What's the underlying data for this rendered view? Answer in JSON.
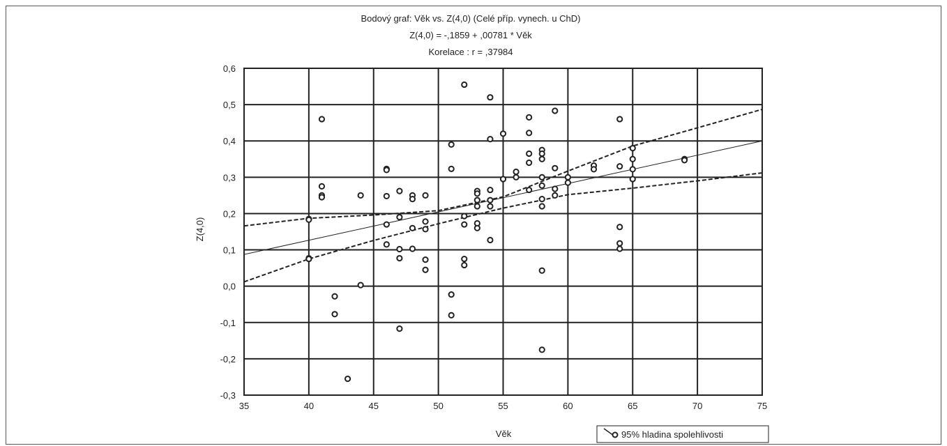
{
  "chart_data": {
    "type": "scatter",
    "title": "Bodový graf: Věk      vs. Z(4,0) (Celé příp. vynech. u ChD)",
    "subtitle": "Z(4,0) = -,1859 + ,00781  * Věk",
    "annotation": "Korelace :   r = ,37984",
    "xlabel": "Věk",
    "ylabel": "Z(4,0)",
    "xlim": [
      35,
      75
    ],
    "ylim": [
      -0.3,
      0.6
    ],
    "x_ticks": [
      "35",
      "40",
      "45",
      "50",
      "55",
      "60",
      "65",
      "70",
      "75"
    ],
    "y_ticks": [
      "-0,3",
      "-0,2",
      "-0,1",
      "0,0",
      "0,1",
      "0,2",
      "0,3",
      "0,4",
      "0,5",
      "0,6"
    ],
    "grid": true,
    "legend": {
      "label": "95% hladina spolehlivosti",
      "position": "bottom-right"
    },
    "regression": {
      "intercept": -0.1859,
      "slope": 0.00781
    },
    "confidence_band": {
      "upper": [
        [
          35,
          0.166
        ],
        [
          40,
          0.187
        ],
        [
          45,
          0.196
        ],
        [
          50,
          0.208
        ],
        [
          55,
          0.246
        ],
        [
          60,
          0.317
        ],
        [
          65,
          0.386
        ],
        [
          70,
          0.436
        ],
        [
          75,
          0.487
        ]
      ],
      "lower": [
        [
          35,
          0.012
        ],
        [
          40,
          0.075
        ],
        [
          45,
          0.126
        ],
        [
          50,
          0.172
        ],
        [
          55,
          0.215
        ],
        [
          60,
          0.252
        ],
        [
          65,
          0.27
        ],
        [
          70,
          0.29
        ],
        [
          75,
          0.312
        ]
      ]
    },
    "points": [
      [
        40,
        0.185
      ],
      [
        40,
        0.183
      ],
      [
        40,
        0.077
      ],
      [
        40,
        0.075
      ],
      [
        41,
        0.46
      ],
      [
        41,
        0.275
      ],
      [
        41,
        0.25
      ],
      [
        41,
        0.245
      ],
      [
        42,
        -0.028
      ],
      [
        42,
        -0.077
      ],
      [
        43,
        -0.255
      ],
      [
        44,
        0.25
      ],
      [
        44,
        0.003
      ],
      [
        46,
        0.323
      ],
      [
        46,
        0.32
      ],
      [
        46,
        0.248
      ],
      [
        46,
        0.17
      ],
      [
        46,
        0.115
      ],
      [
        47,
        0.262
      ],
      [
        47,
        0.19
      ],
      [
        47,
        0.102
      ],
      [
        47,
        0.077
      ],
      [
        47,
        -0.117
      ],
      [
        48,
        0.25
      ],
      [
        48,
        0.24
      ],
      [
        48,
        0.16
      ],
      [
        48,
        0.103
      ],
      [
        49,
        0.25
      ],
      [
        49,
        0.178
      ],
      [
        49,
        0.157
      ],
      [
        49,
        0.073
      ],
      [
        49,
        0.045
      ],
      [
        51,
        0.39
      ],
      [
        51,
        0.323
      ],
      [
        51,
        -0.023
      ],
      [
        51,
        -0.08
      ],
      [
        52,
        0.555
      ],
      [
        52,
        0.193
      ],
      [
        52,
        0.17
      ],
      [
        52,
        0.075
      ],
      [
        52,
        0.058
      ],
      [
        53,
        0.262
      ],
      [
        53,
        0.255
      ],
      [
        53,
        0.237
      ],
      [
        53,
        0.22
      ],
      [
        53,
        0.173
      ],
      [
        53,
        0.16
      ],
      [
        54,
        0.52
      ],
      [
        54,
        0.405
      ],
      [
        54,
        0.265
      ],
      [
        54,
        0.237
      ],
      [
        54,
        0.22
      ],
      [
        54,
        0.127
      ],
      [
        55,
        0.42
      ],
      [
        55,
        0.295
      ],
      [
        56,
        0.315
      ],
      [
        56,
        0.3
      ],
      [
        57,
        0.465
      ],
      [
        57,
        0.422
      ],
      [
        57,
        0.365
      ],
      [
        57,
        0.34
      ],
      [
        57,
        0.265
      ],
      [
        58,
        0.375
      ],
      [
        58,
        0.365
      ],
      [
        58,
        0.35
      ],
      [
        58,
        0.3
      ],
      [
        58,
        0.277
      ],
      [
        58,
        0.24
      ],
      [
        58,
        0.22
      ],
      [
        58,
        0.043
      ],
      [
        58,
        -0.175
      ],
      [
        59,
        0.483
      ],
      [
        59,
        0.325
      ],
      [
        59,
        0.268
      ],
      [
        59,
        0.25
      ],
      [
        60,
        0.3
      ],
      [
        60,
        0.285
      ],
      [
        62,
        0.332
      ],
      [
        62,
        0.322
      ],
      [
        64,
        0.46
      ],
      [
        64,
        0.33
      ],
      [
        64,
        0.163
      ],
      [
        64,
        0.118
      ],
      [
        64,
        0.103
      ],
      [
        65,
        0.38
      ],
      [
        65,
        0.35
      ],
      [
        65,
        0.322
      ],
      [
        65,
        0.295
      ],
      [
        69,
        0.35
      ],
      [
        69,
        0.347
      ]
    ]
  }
}
